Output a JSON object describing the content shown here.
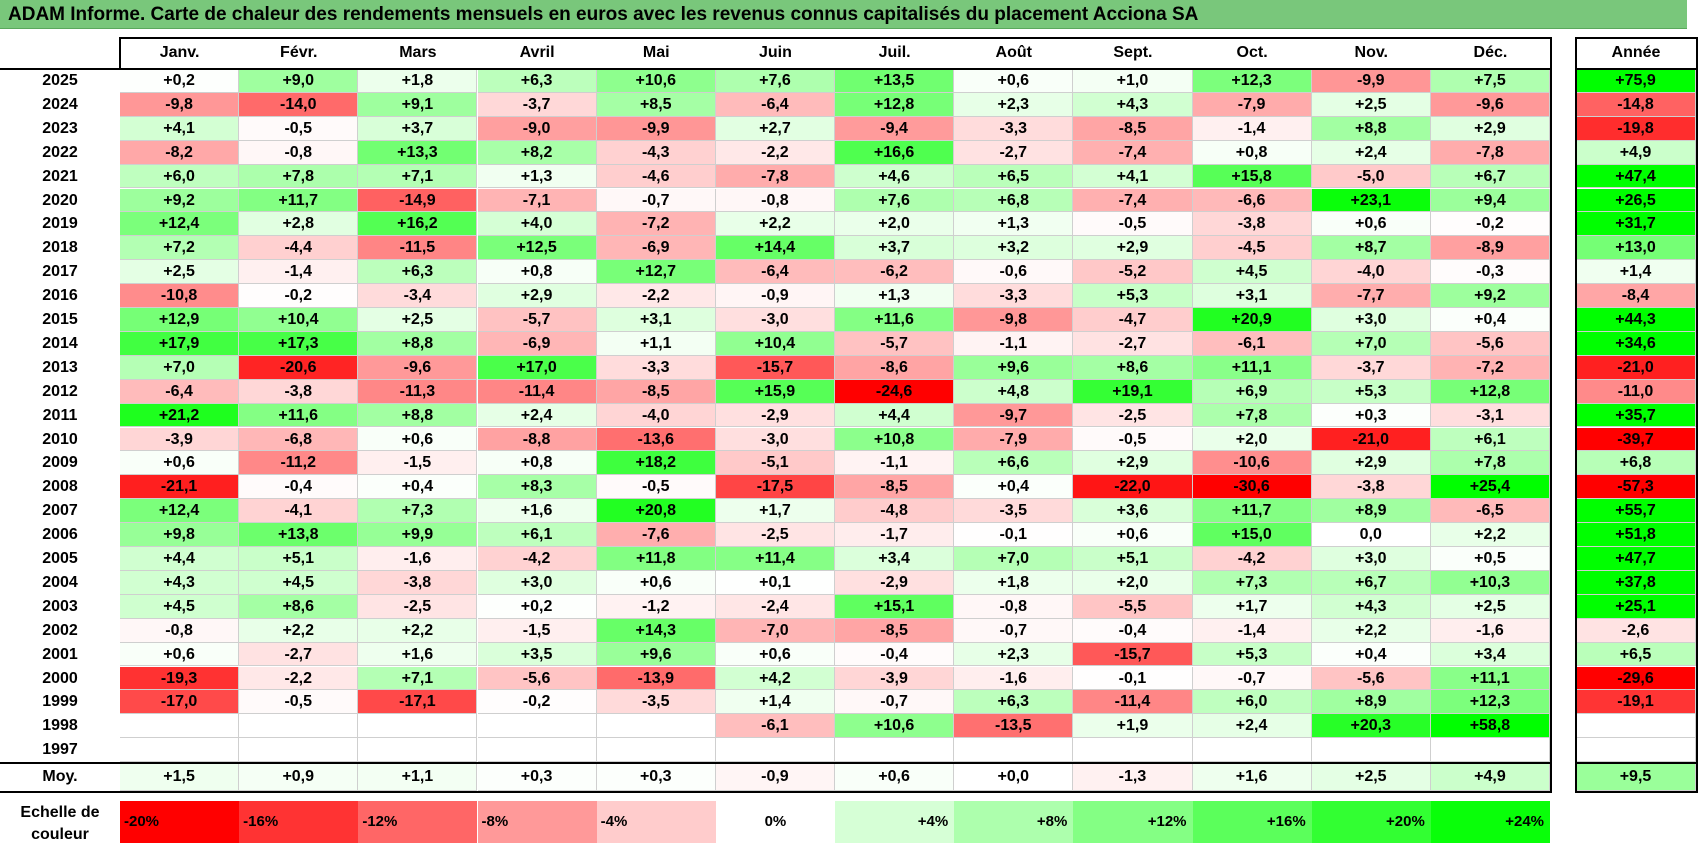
{
  "title": "ADAM Informe. Carte de chaleur des rendements mensuels en euros avec les revenus connus capitalisés du placement Acciona SA",
  "chart_data": {
    "type": "heatmap",
    "title": "ADAM Informe. Carte de chaleur des rendements mensuels en euros avec les revenus connus capitalisés du placement Acciona SA",
    "columns": [
      "Janv.",
      "Févr.",
      "Mars",
      "Avril",
      "Mai",
      "Juin",
      "Juil.",
      "Août",
      "Sept.",
      "Oct.",
      "Nov.",
      "Déc."
    ],
    "year_column": "Année",
    "rows": [
      {
        "year": "2025",
        "values": [
          "+0,2",
          "+9,0",
          "+1,8",
          "+6,3",
          "+10,6",
          "+7,6",
          "+13,5",
          "+0,6",
          "+1,0",
          "+12,3",
          "-9,9",
          "+7,5"
        ],
        "annual": "+75,9"
      },
      {
        "year": "2024",
        "values": [
          "-9,8",
          "-14,0",
          "+9,1",
          "-3,7",
          "+8,5",
          "-6,4",
          "+12,8",
          "+2,3",
          "+4,3",
          "-7,9",
          "+2,5",
          "-9,6"
        ],
        "annual": "-14,8"
      },
      {
        "year": "2023",
        "values": [
          "+4,1",
          "-0,5",
          "+3,7",
          "-9,0",
          "-9,9",
          "+2,7",
          "-9,4",
          "-3,3",
          "-8,5",
          "-1,4",
          "+8,8",
          "+2,9"
        ],
        "annual": "-19,8"
      },
      {
        "year": "2022",
        "values": [
          "-8,2",
          "-0,8",
          "+13,3",
          "+8,2",
          "-4,3",
          "-2,2",
          "+16,6",
          "-2,7",
          "-7,4",
          "+0,8",
          "+2,4",
          "-7,8"
        ],
        "annual": "+4,9"
      },
      {
        "year": "2021",
        "values": [
          "+6,0",
          "+7,8",
          "+7,1",
          "+1,3",
          "-4,6",
          "-7,8",
          "+4,6",
          "+6,5",
          "+4,1",
          "+15,8",
          "-5,0",
          "+6,7"
        ],
        "annual": "+47,4"
      },
      {
        "year": "2020",
        "values": [
          "+9,2",
          "+11,7",
          "-14,9",
          "-7,1",
          "-0,7",
          "-0,8",
          "+7,6",
          "+6,8",
          "-7,4",
          "-6,6",
          "+23,1",
          "+9,4"
        ],
        "annual": "+26,5"
      },
      {
        "year": "2019",
        "values": [
          "+12,4",
          "+2,8",
          "+16,2",
          "+4,0",
          "-7,2",
          "+2,2",
          "+2,0",
          "+1,3",
          "-0,5",
          "-3,8",
          "+0,6",
          "-0,2"
        ],
        "annual": "+31,7"
      },
      {
        "year": "2018",
        "values": [
          "+7,2",
          "-4,4",
          "-11,5",
          "+12,5",
          "-6,9",
          "+14,4",
          "+3,7",
          "+3,2",
          "+2,9",
          "-4,5",
          "+8,7",
          "-8,9"
        ],
        "annual": "+13,0"
      },
      {
        "year": "2017",
        "values": [
          "+2,5",
          "-1,4",
          "+6,3",
          "+0,8",
          "+12,7",
          "-6,4",
          "-6,2",
          "-0,6",
          "-5,2",
          "+4,5",
          "-4,0",
          "-0,3"
        ],
        "annual": "+1,4"
      },
      {
        "year": "2016",
        "values": [
          "-10,8",
          "-0,2",
          "-3,4",
          "+2,9",
          "-2,2",
          "-0,9",
          "+1,3",
          "-3,3",
          "+5,3",
          "+3,1",
          "-7,7",
          "+9,2"
        ],
        "annual": "-8,4"
      },
      {
        "year": "2015",
        "values": [
          "+12,9",
          "+10,4",
          "+2,5",
          "-5,7",
          "+3,1",
          "-3,0",
          "+11,6",
          "-9,8",
          "-4,7",
          "+20,9",
          "+3,0",
          "+0,4"
        ],
        "annual": "+44,3"
      },
      {
        "year": "2014",
        "values": [
          "+17,9",
          "+17,3",
          "+8,8",
          "-6,9",
          "+1,1",
          "+10,4",
          "-5,7",
          "-1,1",
          "-2,7",
          "-6,1",
          "+7,0",
          "-5,6"
        ],
        "annual": "+34,6"
      },
      {
        "year": "2013",
        "values": [
          "+7,0",
          "-20,6",
          "-9,6",
          "+17,0",
          "-3,3",
          "-15,7",
          "-8,6",
          "+9,6",
          "+8,6",
          "+11,1",
          "-3,7",
          "-7,2"
        ],
        "annual": "-21,0"
      },
      {
        "year": "2012",
        "values": [
          "-6,4",
          "-3,8",
          "-11,3",
          "-11,4",
          "-8,5",
          "+15,9",
          "-24,6",
          "+4,8",
          "+19,1",
          "+6,9",
          "+5,3",
          "+12,8"
        ],
        "annual": "-11,0"
      },
      {
        "year": "2011",
        "values": [
          "+21,2",
          "+11,6",
          "+8,8",
          "+2,4",
          "-4,0",
          "-2,9",
          "+4,4",
          "-9,7",
          "-2,5",
          "+7,8",
          "+0,3",
          "-3,1"
        ],
        "annual": "+35,7"
      },
      {
        "year": "2010",
        "values": [
          "-3,9",
          "-6,8",
          "+0,6",
          "-8,8",
          "-13,6",
          "-3,0",
          "+10,8",
          "-7,9",
          "-0,5",
          "+2,0",
          "-21,0",
          "+6,1"
        ],
        "annual": "-39,7"
      },
      {
        "year": "2009",
        "values": [
          "+0,6",
          "-11,2",
          "-1,5",
          "+0,8",
          "+18,2",
          "-5,1",
          "-1,1",
          "+6,6",
          "+2,9",
          "-10,6",
          "+2,9",
          "+7,8"
        ],
        "annual": "+6,8"
      },
      {
        "year": "2008",
        "values": [
          "-21,1",
          "-0,4",
          "+0,4",
          "+8,3",
          "-0,5",
          "-17,5",
          "-8,5",
          "+0,4",
          "-22,0",
          "-30,6",
          "-3,8",
          "+25,4"
        ],
        "annual": "-57,3"
      },
      {
        "year": "2007",
        "values": [
          "+12,4",
          "-4,1",
          "+7,3",
          "+1,6",
          "+20,8",
          "+1,7",
          "-4,8",
          "-3,5",
          "+3,6",
          "+11,7",
          "+8,9",
          "-6,5"
        ],
        "annual": "+55,7"
      },
      {
        "year": "2006",
        "values": [
          "+9,8",
          "+13,8",
          "+9,9",
          "+6,1",
          "-7,6",
          "-2,5",
          "-1,7",
          "-0,1",
          "+0,6",
          "+15,0",
          "0,0",
          "+2,2"
        ],
        "annual": "+51,8"
      },
      {
        "year": "2005",
        "values": [
          "+4,4",
          "+5,1",
          "-1,6",
          "-4,2",
          "+11,8",
          "+11,4",
          "+3,4",
          "+7,0",
          "+5,1",
          "-4,2",
          "+3,0",
          "+0,5"
        ],
        "annual": "+47,7"
      },
      {
        "year": "2004",
        "values": [
          "+4,3",
          "+4,5",
          "-3,8",
          "+3,0",
          "+0,6",
          "+0,1",
          "-2,9",
          "+1,8",
          "+2,0",
          "+7,3",
          "+6,7",
          "+10,3"
        ],
        "annual": "+37,8"
      },
      {
        "year": "2003",
        "values": [
          "+4,5",
          "+8,6",
          "-2,5",
          "+0,2",
          "-1,2",
          "-2,4",
          "+15,1",
          "-0,8",
          "-5,5",
          "+1,7",
          "+4,3",
          "+2,5"
        ],
        "annual": "+25,1"
      },
      {
        "year": "2002",
        "values": [
          "-0,8",
          "+2,2",
          "+2,2",
          "-1,5",
          "+14,3",
          "-7,0",
          "-8,5",
          "-0,7",
          "-0,4",
          "-1,4",
          "+2,2",
          "-1,6"
        ],
        "annual": "-2,6"
      },
      {
        "year": "2001",
        "values": [
          "+0,6",
          "-2,7",
          "+1,6",
          "+3,5",
          "+9,6",
          "+0,6",
          "-0,4",
          "+2,3",
          "-15,7",
          "+5,3",
          "+0,4",
          "+3,4"
        ],
        "annual": "+6,5"
      },
      {
        "year": "2000",
        "values": [
          "-19,3",
          "-2,2",
          "+7,1",
          "-5,6",
          "-13,9",
          "+4,2",
          "-3,9",
          "-1,6",
          "-0,1",
          "-0,7",
          "-5,6",
          "+11,1"
        ],
        "annual": "-29,6"
      },
      {
        "year": "1999",
        "values": [
          "-17,0",
          "-0,5",
          "-17,1",
          "-0,2",
          "-3,5",
          "+1,4",
          "-0,7",
          "+6,3",
          "-11,4",
          "+6,0",
          "+8,9",
          "+12,3"
        ],
        "annual": "-19,1"
      },
      {
        "year": "1998",
        "values": [
          "",
          "",
          "",
          "",
          "",
          "-6,1",
          "+10,6",
          "-13,5",
          "+1,9",
          "+2,4",
          "+20,3",
          "+58,8"
        ],
        "annual": ""
      },
      {
        "year": "1997",
        "values": [
          "",
          "",
          "",
          "",
          "",
          "",
          "",
          "",
          "",
          "",
          "",
          ""
        ],
        "annual": ""
      }
    ],
    "average": {
      "label": "Moy.",
      "values": [
        "+1,5",
        "+0,9",
        "+1,1",
        "+0,3",
        "+0,3",
        "-0,9",
        "+0,6",
        "+0,0",
        "-1,3",
        "+1,6",
        "+2,5",
        "+4,9"
      ],
      "annual": "+9,5"
    },
    "color_scale": {
      "label_line1": "Echelle de",
      "label_line2": "couleur",
      "steps": [
        {
          "label": "-20%",
          "value": -20,
          "color": "#ff0000"
        },
        {
          "label": "-16%",
          "value": -16,
          "color": "#ff3333"
        },
        {
          "label": "-12%",
          "value": -12,
          "color": "#ff6666"
        },
        {
          "label": "-8%",
          "value": -8,
          "color": "#ff9999"
        },
        {
          "label": "-4%",
          "value": -4,
          "color": "#ffcccc"
        },
        {
          "label": "0%",
          "value": 0,
          "color": "#ffffff"
        },
        {
          "label": "+4%",
          "value": 4,
          "color": "#d6ffd6"
        },
        {
          "label": "+8%",
          "value": 8,
          "color": "#adffad"
        },
        {
          "label": "+12%",
          "value": 12,
          "color": "#84ff84"
        },
        {
          "label": "+16%",
          "value": 16,
          "color": "#5bff5b"
        },
        {
          "label": "+20%",
          "value": 20,
          "color": "#32ff32"
        },
        {
          "label": "+24%",
          "value": 24,
          "color": "#09ff09"
        }
      ]
    }
  }
}
